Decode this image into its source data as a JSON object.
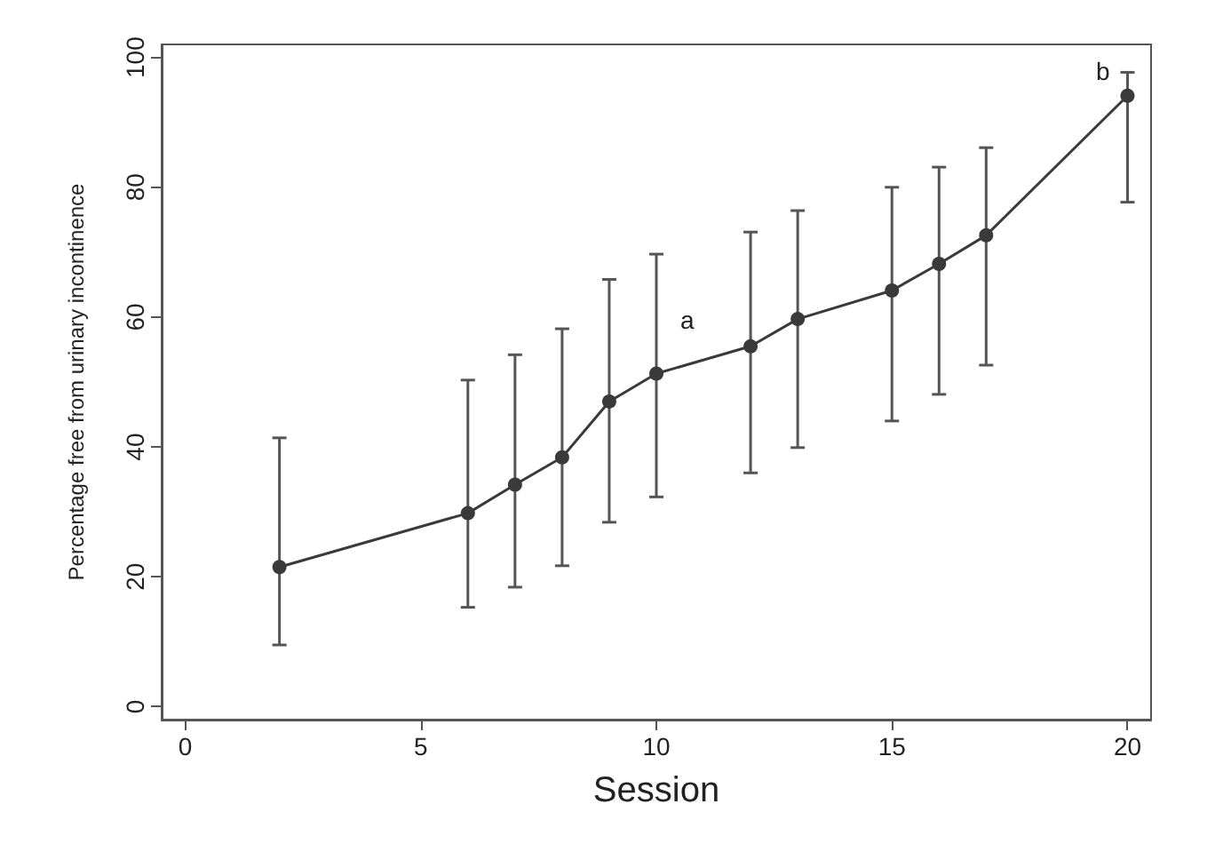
{
  "chart_data": {
    "type": "line",
    "xlabel": "Session",
    "ylabel": "Percentage free from urinary incontinence",
    "x": [
      2,
      6,
      7,
      8,
      9,
      10,
      12,
      13,
      15,
      16,
      17,
      20
    ],
    "series": [
      {
        "color": "#3a3a3a",
        "values": [
          21.5,
          29.8,
          34.2,
          38.4,
          47.0,
          51.3,
          55.5,
          59.7,
          64.1,
          68.2,
          72.6,
          94.1
        ],
        "errors": [
          [
            9.5,
            41.4
          ],
          [
            15.3,
            50.3
          ],
          [
            18.4,
            54.2
          ],
          [
            21.7,
            58.2
          ],
          [
            28.4,
            65.8
          ],
          [
            32.3,
            69.7
          ],
          [
            36.0,
            73.1
          ],
          [
            39.9,
            76.4
          ],
          [
            44.0,
            80.0
          ],
          [
            48.1,
            83.1
          ],
          [
            52.6,
            86.1
          ],
          [
            77.7,
            97.7
          ]
        ]
      }
    ],
    "xlim": [
      -0.5,
      20.5
    ],
    "xticks": [
      0,
      5,
      10,
      15,
      20
    ],
    "ylim": [
      -2,
      102
    ],
    "yticks": [
      0,
      20,
      40,
      60,
      80,
      100
    ],
    "annotations": [
      "a",
      "b"
    ],
    "grid": false,
    "marker": "circle",
    "line_style": "solid"
  }
}
